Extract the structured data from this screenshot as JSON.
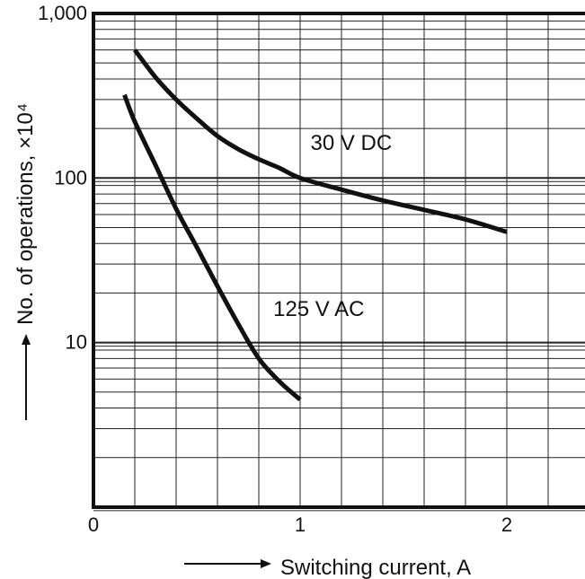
{
  "chart_data": {
    "type": "line",
    "title": "",
    "xlabel": "Switching current, A",
    "ylabel": "No. of operations, ×10⁴",
    "ylabel_exponent": "4",
    "x_scale": "linear",
    "y_scale": "log",
    "xlim": [
      0,
      2.3
    ],
    "ylim": [
      1,
      1000
    ],
    "x_ticks": [
      {
        "value": 0,
        "label": "0"
      },
      {
        "value": 1,
        "label": "1"
      },
      {
        "value": 2,
        "label": "2"
      }
    ],
    "y_ticks": [
      {
        "value": 10,
        "label": "10"
      },
      {
        "value": 100,
        "label": "100"
      },
      {
        "value": 1000,
        "label": "1,000"
      }
    ],
    "grid": true,
    "series": [
      {
        "name": "30 V DC",
        "x": [
          0.2,
          0.3,
          0.4,
          0.5,
          0.6,
          0.7,
          0.8,
          0.9,
          1.0,
          1.2,
          1.4,
          1.6,
          1.8,
          2.0
        ],
        "y": [
          600,
          410,
          300,
          230,
          180,
          150,
          130,
          115,
          100,
          85,
          73,
          64,
          56,
          47
        ]
      },
      {
        "name": "125 V AC",
        "x": [
          0.15,
          0.2,
          0.3,
          0.4,
          0.5,
          0.6,
          0.7,
          0.8,
          0.9,
          1.0
        ],
        "y": [
          320,
          220,
          120,
          65,
          38,
          22,
          13,
          8,
          5.8,
          4.5
        ]
      }
    ]
  }
}
